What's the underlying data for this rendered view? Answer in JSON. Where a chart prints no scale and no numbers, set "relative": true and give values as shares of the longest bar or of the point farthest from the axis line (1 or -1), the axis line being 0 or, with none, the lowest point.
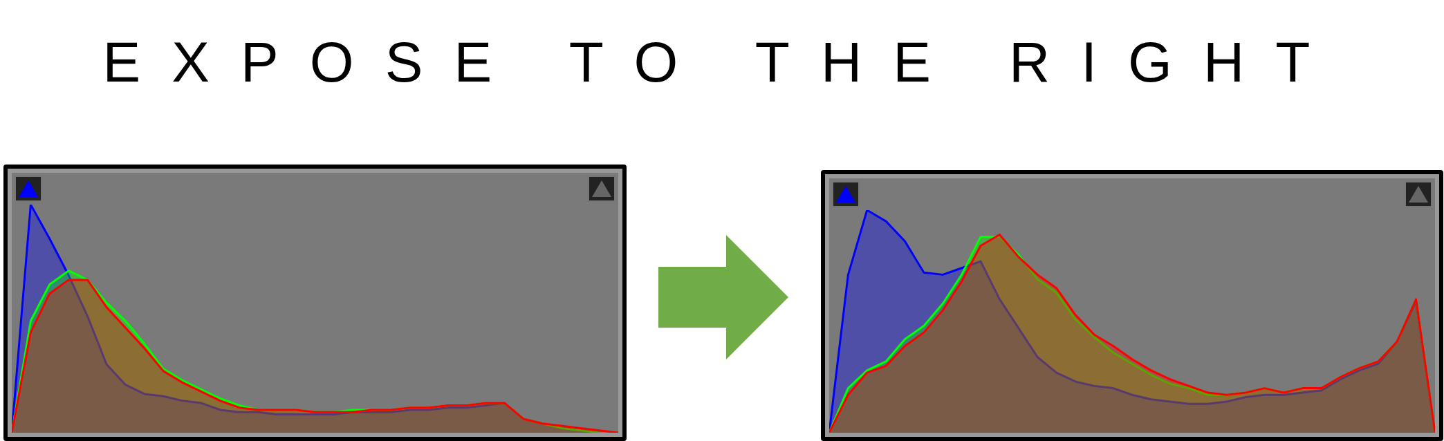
{
  "chart_data": [
    {
      "type": "area",
      "title": "EXPOSE TO THE RIGHT",
      "relative": true,
      "categories": [
        null,
        null,
        null,
        null,
        null,
        null,
        null,
        null,
        null,
        null,
        null,
        null,
        null,
        null,
        null,
        null,
        null,
        null,
        null,
        null,
        null,
        null,
        null,
        null,
        null,
        null,
        null,
        null,
        null,
        null,
        null,
        null,
        null
      ],
      "series": [
        {
          "color": "#ff0000",
          "values": [
            0,
            0.44,
            0.61,
            0.67,
            0.67,
            0.55,
            0.46,
            0.37,
            0.27,
            0.22,
            0.18,
            0.14,
            0.11,
            0.1,
            0.1,
            0.1,
            0.09,
            0.09,
            0.09,
            0.1,
            0.1,
            0.11,
            0.11,
            0.12,
            0.12,
            0.13,
            0.13,
            0.06,
            0.04,
            0.03,
            0.02,
            0.01,
            0
          ]
        },
        {
          "color": "#00ff00",
          "values": [
            0,
            0.49,
            0.65,
            0.71,
            0.67,
            0.57,
            0.49,
            0.39,
            0.28,
            0.23,
            0.19,
            0.15,
            0.12,
            0.1,
            0.1,
            0.1,
            0.09,
            0.09,
            0.1,
            0.1,
            0.1,
            0.11,
            0.11,
            0.12,
            0.12,
            0.13,
            0.13,
            0.06,
            0.04,
            0.02,
            0.01,
            0.0,
            0
          ]
        },
        {
          "color": "#0000ff",
          "values": [
            0,
            1,
            0.85,
            0.69,
            0.51,
            0.3,
            0.21,
            0.17,
            0.16,
            0.14,
            0.13,
            0.1,
            0.09,
            0.09,
            0.08,
            0.08,
            0.08,
            0.08,
            0.09,
            0.09,
            0.09,
            0.1,
            0.1,
            0.11,
            0.11,
            0.12,
            0.13,
            0.06,
            0.04,
            0.02,
            0.01,
            0.0,
            0
          ]
        }
      ]
    },
    {
      "type": "area",
      "relative": true,
      "categories": [
        null,
        null,
        null,
        null,
        null,
        null,
        null,
        null,
        null,
        null,
        null,
        null,
        null,
        null,
        null,
        null,
        null,
        null,
        null,
        null,
        null,
        null,
        null,
        null,
        null,
        null,
        null,
        null,
        null,
        null,
        null,
        null,
        null
      ],
      "series": [
        {
          "color": "#ff0000",
          "values": [
            0,
            0.17,
            0.27,
            0.3,
            0.39,
            0.45,
            0.55,
            0.68,
            0.84,
            0.89,
            0.79,
            0.71,
            0.65,
            0.53,
            0.44,
            0.39,
            0.33,
            0.28,
            0.24,
            0.21,
            0.18,
            0.17,
            0.18,
            0.2,
            0.18,
            0.2,
            0.2,
            0.25,
            0.29,
            0.32,
            0.41,
            0.6,
            0
          ]
        },
        {
          "color": "#00ff00",
          "values": [
            0,
            0.2,
            0.28,
            0.32,
            0.42,
            0.48,
            0.58,
            0.71,
            0.88,
            0.88,
            0.8,
            0.69,
            0.63,
            0.51,
            0.43,
            0.36,
            0.31,
            0.26,
            0.22,
            0.2,
            0.17,
            0.17,
            0.18,
            0.2,
            0.18,
            0.2,
            0.2,
            0.25,
            0.29,
            0.32,
            0.41,
            0.6,
            0
          ]
        },
        {
          "color": "#0000ff",
          "values": [
            0,
            0.71,
            1,
            0.95,
            0.86,
            0.72,
            0.71,
            0.74,
            0.77,
            0.6,
            0.47,
            0.34,
            0.27,
            0.23,
            0.21,
            0.2,
            0.17,
            0.15,
            0.14,
            0.13,
            0.13,
            0.14,
            0.16,
            0.17,
            0.17,
            0.18,
            0.19,
            0.24,
            0.28,
            0.31,
            0.41,
            0.59,
            0
          ]
        }
      ]
    }
  ]
}
